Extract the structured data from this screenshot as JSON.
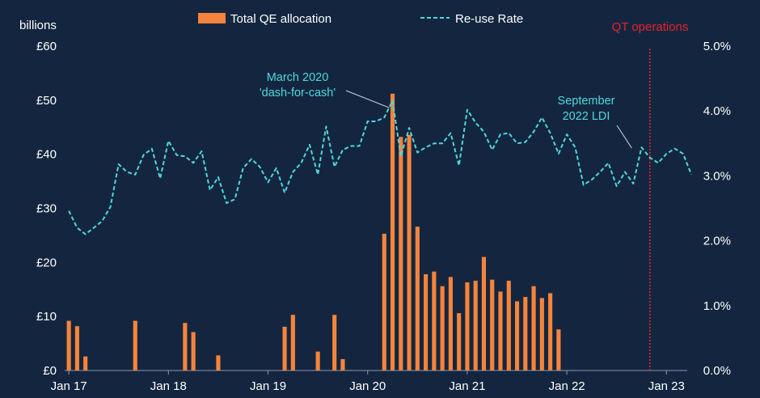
{
  "chart_data": {
    "type": "bar+line",
    "unit_label": "billions",
    "legend": [
      {
        "name": "Total QE allocation",
        "style": "bar",
        "color": "#f5843c"
      },
      {
        "name": "Re-use Rate",
        "style": "dashed-line",
        "color": "#4fd8de"
      }
    ],
    "x_tick_labels": [
      "Jan 17",
      "Jan 18",
      "Jan 19",
      "Jan 20",
      "Jan 21",
      "Jan 22",
      "Jan 23"
    ],
    "x_tick_months": [
      0,
      12,
      24,
      36,
      48,
      60,
      72
    ],
    "x_range_months": [
      -0.5,
      74.5
    ],
    "y_left": {
      "ticks": [
        "£0",
        "£10",
        "£20",
        "£30",
        "£40",
        "£50",
        "£60"
      ],
      "values": [
        0,
        10,
        20,
        30,
        40,
        50,
        60
      ],
      "ylim": [
        0,
        60
      ]
    },
    "y_right": {
      "ticks": [
        "0.0%",
        "1.0%",
        "2.0%",
        "3.0%",
        "4.0%",
        "5.0%"
      ],
      "values": [
        0,
        1,
        2,
        3,
        4,
        5
      ],
      "ylim": [
        0,
        5
      ]
    },
    "bars": {
      "name": "Total QE allocation",
      "points": [
        {
          "m": 0,
          "v": 9.2
        },
        {
          "m": 1,
          "v": 8.2
        },
        {
          "m": 2,
          "v": 2.6
        },
        {
          "m": 8,
          "v": 9.2
        },
        {
          "m": 14,
          "v": 8.8
        },
        {
          "m": 15,
          "v": 7.1
        },
        {
          "m": 18,
          "v": 2.8
        },
        {
          "m": 26,
          "v": 8.1
        },
        {
          "m": 27,
          "v": 10.3
        },
        {
          "m": 30,
          "v": 3.5
        },
        {
          "m": 32,
          "v": 10.3
        },
        {
          "m": 33,
          "v": 2.1
        },
        {
          "m": 38,
          "v": 25.3
        },
        {
          "m": 39,
          "v": 51.2
        },
        {
          "m": 40,
          "v": 43.2
        },
        {
          "m": 41,
          "v": 43.6
        },
        {
          "m": 42,
          "v": 26.6
        },
        {
          "m": 43,
          "v": 17.8
        },
        {
          "m": 44,
          "v": 18.3
        },
        {
          "m": 45,
          "v": 15.6
        },
        {
          "m": 46,
          "v": 17.3
        },
        {
          "m": 47,
          "v": 10.6
        },
        {
          "m": 48,
          "v": 16.3
        },
        {
          "m": 49,
          "v": 16.6
        },
        {
          "m": 50,
          "v": 21.0
        },
        {
          "m": 51,
          "v": 16.8
        },
        {
          "m": 52,
          "v": 14.6
        },
        {
          "m": 53,
          "v": 16.6
        },
        {
          "m": 54,
          "v": 12.8
        },
        {
          "m": 55,
          "v": 13.6
        },
        {
          "m": 56,
          "v": 15.6
        },
        {
          "m": 57,
          "v": 13.4
        },
        {
          "m": 58,
          "v": 14.3
        },
        {
          "m": 59,
          "v": 7.6
        }
      ]
    },
    "line": {
      "name": "Re-use Rate",
      "points": [
        {
          "m": 0,
          "v": 2.46
        },
        {
          "m": 1,
          "v": 2.2
        },
        {
          "m": 2,
          "v": 2.1
        },
        {
          "m": 3,
          "v": 2.2
        },
        {
          "m": 4,
          "v": 2.3
        },
        {
          "m": 5,
          "v": 2.52
        },
        {
          "m": 6,
          "v": 3.18
        },
        {
          "m": 7,
          "v": 3.06
        },
        {
          "m": 8,
          "v": 3.02
        },
        {
          "m": 9,
          "v": 3.32
        },
        {
          "m": 10,
          "v": 3.42
        },
        {
          "m": 11,
          "v": 2.96
        },
        {
          "m": 12,
          "v": 3.54
        },
        {
          "m": 13,
          "v": 3.32
        },
        {
          "m": 14,
          "v": 3.3
        },
        {
          "m": 15,
          "v": 3.2
        },
        {
          "m": 16,
          "v": 3.38
        },
        {
          "m": 17,
          "v": 2.78
        },
        {
          "m": 18,
          "v": 2.98
        },
        {
          "m": 19,
          "v": 2.58
        },
        {
          "m": 20,
          "v": 2.64
        },
        {
          "m": 21,
          "v": 3.12
        },
        {
          "m": 22,
          "v": 3.26
        },
        {
          "m": 23,
          "v": 3.14
        },
        {
          "m": 24,
          "v": 2.9
        },
        {
          "m": 25,
          "v": 3.12
        },
        {
          "m": 26,
          "v": 2.74
        },
        {
          "m": 27,
          "v": 3.06
        },
        {
          "m": 28,
          "v": 3.2
        },
        {
          "m": 29,
          "v": 3.48
        },
        {
          "m": 30,
          "v": 3.02
        },
        {
          "m": 31,
          "v": 3.76
        },
        {
          "m": 32,
          "v": 3.14
        },
        {
          "m": 33,
          "v": 3.4
        },
        {
          "m": 34,
          "v": 3.46
        },
        {
          "m": 35,
          "v": 3.46
        },
        {
          "m": 36,
          "v": 3.84
        },
        {
          "m": 37,
          "v": 3.84
        },
        {
          "m": 38,
          "v": 3.9
        },
        {
          "m": 39,
          "v": 4.16
        },
        {
          "m": 40,
          "v": 3.3
        },
        {
          "m": 41,
          "v": 3.74
        },
        {
          "m": 42,
          "v": 3.36
        },
        {
          "m": 43,
          "v": 3.44
        },
        {
          "m": 44,
          "v": 3.5
        },
        {
          "m": 45,
          "v": 3.5
        },
        {
          "m": 46,
          "v": 3.66
        },
        {
          "m": 47,
          "v": 3.16
        },
        {
          "m": 48,
          "v": 4.02
        },
        {
          "m": 49,
          "v": 3.82
        },
        {
          "m": 50,
          "v": 3.68
        },
        {
          "m": 51,
          "v": 3.4
        },
        {
          "m": 52,
          "v": 3.64
        },
        {
          "m": 53,
          "v": 3.66
        },
        {
          "m": 54,
          "v": 3.5
        },
        {
          "m": 55,
          "v": 3.52
        },
        {
          "m": 56,
          "v": 3.68
        },
        {
          "m": 57,
          "v": 3.9
        },
        {
          "m": 58,
          "v": 3.66
        },
        {
          "m": 59,
          "v": 3.34
        },
        {
          "m": 60,
          "v": 3.64
        },
        {
          "m": 61,
          "v": 3.44
        },
        {
          "m": 62,
          "v": 2.86
        },
        {
          "m": 63,
          "v": 2.94
        },
        {
          "m": 64,
          "v": 3.06
        },
        {
          "m": 65,
          "v": 3.2
        },
        {
          "m": 66,
          "v": 2.84
        },
        {
          "m": 67,
          "v": 3.06
        },
        {
          "m": 68,
          "v": 2.88
        },
        {
          "m": 69,
          "v": 3.44
        },
        {
          "m": 70,
          "v": 3.28
        },
        {
          "m": 71,
          "v": 3.2
        },
        {
          "m": 72,
          "v": 3.34
        },
        {
          "m": 73,
          "v": 3.42
        },
        {
          "m": 74,
          "v": 3.34
        },
        {
          "m": 75,
          "v": 3.02
        }
      ]
    },
    "reference_line": {
      "m": 70,
      "label": "QT operations",
      "color": "#e8202a",
      "style": "dotted"
    },
    "annotations": [
      {
        "lines": [
          "March 2020",
          "'dash-for-cash'"
        ],
        "anchor_m": 39,
        "anchor_v": 4.1
      },
      {
        "lines": [
          "September",
          "2022 LDI"
        ],
        "anchor_m": 68,
        "anchor_v": 3.38
      }
    ]
  }
}
